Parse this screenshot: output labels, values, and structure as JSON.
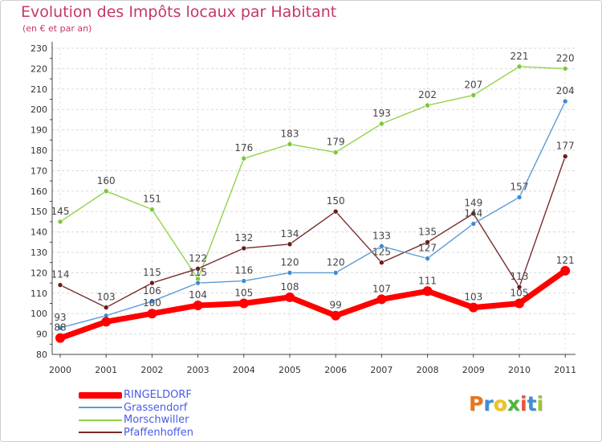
{
  "title": "Evolution des Impôts locaux par Habitant",
  "subtitle": "(en € et par an)",
  "brand": {
    "letters": [
      "P",
      "r",
      "o",
      "x",
      "i",
      "t",
      "i"
    ],
    "colors": [
      "#e8771a",
      "#3c8fd8",
      "#f0c21b",
      "#4fb53a",
      "#e8543a",
      "#3c8fd8",
      "#9fc332"
    ]
  },
  "chart_data": {
    "type": "line",
    "title": "Evolution des Impôts locaux par Habitant",
    "subtitle": "(en € et par an)",
    "x": [
      "2000",
      "2001",
      "2002",
      "2003",
      "2004",
      "2005",
      "2006",
      "2007",
      "2008",
      "2009",
      "2010",
      "2011"
    ],
    "ylim": [
      80,
      230
    ],
    "yticks": [
      80,
      90,
      100,
      110,
      120,
      130,
      140,
      150,
      160,
      170,
      180,
      190,
      200,
      210,
      220,
      230
    ],
    "grid": true,
    "legend_position": "bottom-left",
    "series": [
      {
        "name": "Morschwiller",
        "color": "#8fd44a",
        "marker": "#7cc63a",
        "emphasis": false,
        "values": [
          145,
          160,
          151,
          117,
          176,
          183,
          179,
          193,
          202,
          207,
          221,
          220
        ],
        "labels": [
          "145",
          "160",
          "151",
          "",
          "176",
          "183",
          "179",
          "193",
          "202",
          "207",
          "221",
          "220"
        ]
      },
      {
        "name": "Pfaffenhoffen",
        "color": "#7a2a2a",
        "marker": "#6b1a1a",
        "emphasis": false,
        "values": [
          114,
          103,
          115,
          122,
          132,
          134,
          150,
          125,
          135,
          149,
          113,
          177
        ],
        "labels": [
          "114",
          "103",
          "115",
          "122",
          "132",
          "134",
          "150",
          "125",
          "135",
          "149",
          "113",
          "177"
        ]
      },
      {
        "name": "Grassendorf",
        "color": "#5b9bd5",
        "marker": "#3d8ad6",
        "emphasis": false,
        "values": [
          93,
          99,
          106,
          115,
          116,
          120,
          120,
          133,
          127,
          144,
          157,
          204
        ],
        "labels": [
          "93",
          "",
          "106",
          "115",
          "116",
          "120",
          "120",
          "133",
          "127",
          "144",
          "157",
          "204"
        ]
      },
      {
        "name": "RINGELDORF",
        "color": "#ff0000",
        "marker": "#ff0000",
        "emphasis": true,
        "values": [
          88,
          96,
          100,
          104,
          105,
          108,
          99,
          107,
          111,
          103,
          105,
          121
        ],
        "labels": [
          "88",
          "",
          "100",
          "104",
          "105",
          "108",
          "99",
          "107",
          "111",
          "103",
          "105",
          "121"
        ]
      }
    ],
    "legend": [
      "RINGELDORF",
      "Grassendorf",
      "Morschwiller",
      "Pfaffenhoffen"
    ]
  }
}
